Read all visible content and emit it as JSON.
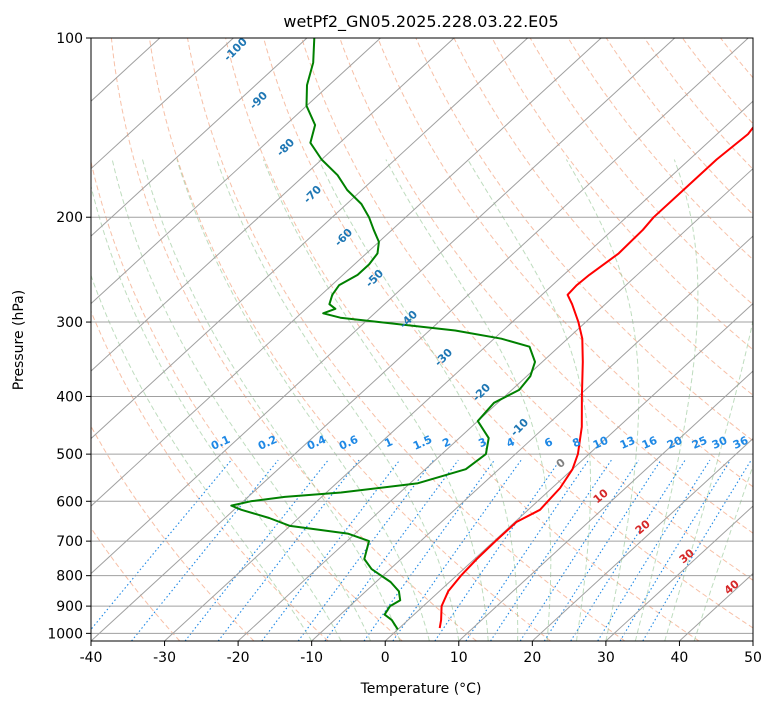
{
  "chart_data": {
    "type": "skew-t",
    "title": "wetPf2_GN05.2025.228.03.22.E05",
    "xlabel": "Temperature (°C)",
    "ylabel": "Pressure (hPa)",
    "xlim": [
      -40,
      50
    ],
    "ylim": [
      1030,
      100
    ],
    "y_scale": "log",
    "x_ticks": [
      "-40",
      "-30",
      "-20",
      "-10",
      "0",
      "10",
      "20",
      "30",
      "40",
      "50"
    ],
    "y_ticks": [
      "100",
      "200",
      "300",
      "400",
      "500",
      "600",
      "700",
      "800",
      "900",
      "1000"
    ],
    "grid": true,
    "colors": {
      "temperature": "#ff0000",
      "dewpoint": "#008000",
      "isotherm": "#a0a0a0",
      "dry_adiabat": "#f4a582",
      "moist_adiabat": "#92c592",
      "mixing_ratio": "#1e88e5",
      "potential_temperature_label": "#1f77b4",
      "equivalent_temperature_label": "#d62728"
    },
    "series": [
      {
        "key": "temperature",
        "pressure_hPa": [
          980,
          950,
          900,
          850,
          800,
          750,
          700,
          650,
          620,
          600,
          570,
          530,
          500,
          450,
          400,
          350,
          320,
          300,
          280,
          270,
          260,
          250,
          230,
          210,
          200,
          180,
          160,
          145,
          135,
          125,
          118,
          110,
          100
        ],
        "temp_c": [
          5.5,
          4.5,
          2.5,
          1.2,
          0.6,
          0.3,
          0.2,
          0.2,
          1.6,
          1.4,
          1.1,
          0.0,
          -1.5,
          -5.0,
          -9.5,
          -14.5,
          -18.0,
          -21.0,
          -24.5,
          -26.5,
          -26.7,
          -26.5,
          -25.7,
          -25.9,
          -26.3,
          -26.3,
          -26.3,
          -25.8,
          -26.6,
          -29.4,
          -32.9,
          -33.5,
          -31.7
        ]
      },
      {
        "key": "dewpoint",
        "pressure_hPa": [
          985,
          950,
          930,
          900,
          880,
          850,
          820,
          780,
          750,
          700,
          680,
          660,
          640,
          620,
          610,
          600,
          590,
          580,
          560,
          530,
          500,
          470,
          440,
          410,
          390,
          370,
          350,
          330,
          320,
          310,
          300,
          295,
          290,
          285,
          280,
          270,
          260,
          250,
          240,
          230,
          220,
          210,
          200,
          190,
          180,
          170,
          160,
          150,
          140,
          130,
          120,
          110,
          100
        ],
        "dewp_c": [
          0.0,
          -2.2,
          -4.0,
          -4.5,
          -4.0,
          -5.5,
          -8.0,
          -12.5,
          -15.0,
          -17.0,
          -21.0,
          -30.0,
          -34.0,
          -39.0,
          -41.0,
          -39.0,
          -35.0,
          -28.0,
          -19.0,
          -14.5,
          -14.0,
          -16.0,
          -20.0,
          -20.5,
          -19.0,
          -19.5,
          -21.0,
          -24.0,
          -29.0,
          -36.5,
          -48.0,
          -54.0,
          -57.0,
          -56.0,
          -57.5,
          -58.5,
          -59.0,
          -58.0,
          -58.0,
          -58.5,
          -60.0,
          -62.5,
          -65.0,
          -68.0,
          -72.0,
          -75.5,
          -80.0,
          -84.0,
          -86.0,
          -90.0,
          -93.0,
          -95.5,
          -99.0
        ]
      }
    ],
    "mixing_ratio_labels": [
      "0.1",
      "0.2",
      "0.4",
      "0.6",
      "1",
      "1.5",
      "2",
      "3",
      "4",
      "6",
      "8",
      "10",
      "13",
      "16",
      "20",
      "25",
      "30",
      "36"
    ],
    "potential_temperature_labels": [
      "-100",
      "-90",
      "-80",
      "-70",
      "-60",
      "-50",
      "-40",
      "-30",
      "-20",
      "-10"
    ],
    "equivalent_temperature_labels": [
      "0",
      "10",
      "20",
      "30",
      "40"
    ]
  }
}
